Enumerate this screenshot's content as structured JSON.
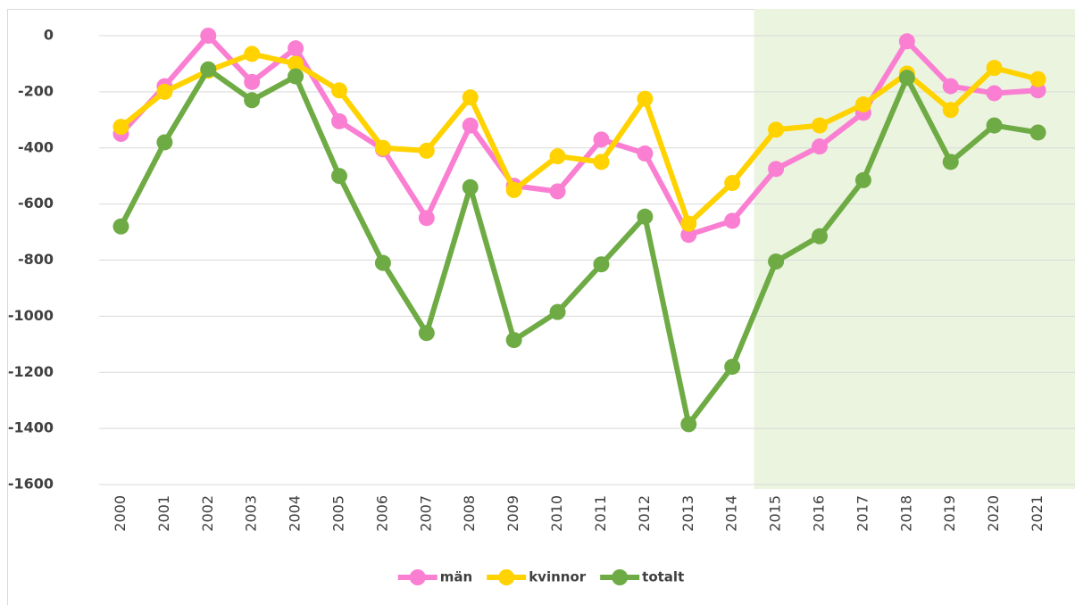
{
  "chart_data": {
    "type": "line",
    "categories": [
      "2000",
      "2001",
      "2002",
      "2003",
      "2004",
      "2005",
      "2006",
      "2007",
      "2008",
      "2009",
      "2010",
      "2011",
      "2012",
      "2013",
      "2014",
      "2015",
      "2016",
      "2017",
      "2018",
      "2019",
      "2020",
      "2021"
    ],
    "series": [
      {
        "name": "män",
        "color": "#fa7fd2",
        "values": [
          -350,
          -180,
          0,
          -165,
          -45,
          -305,
          -405,
          -650,
          -320,
          -535,
          -555,
          -370,
          -420,
          -710,
          -660,
          -475,
          -395,
          -275,
          -20,
          -180,
          -205,
          -195
        ]
      },
      {
        "name": "kvinnor",
        "color": "#ffd200",
        "values": [
          -325,
          -200,
          -125,
          -65,
          -100,
          -195,
          -400,
          -410,
          -220,
          -550,
          -430,
          -450,
          -225,
          -670,
          -525,
          -335,
          -320,
          -245,
          -135,
          -265,
          -115,
          -155
        ]
      },
      {
        "name": "totalt",
        "color": "#6fab44",
        "values": [
          -680,
          -380,
          -120,
          -230,
          -145,
          -500,
          -810,
          -1060,
          -540,
          -1085,
          -985,
          -815,
          -645,
          -1385,
          -1180,
          -805,
          -715,
          -515,
          -150,
          -450,
          -320,
          -345
        ]
      }
    ],
    "ylim": [
      -1600,
      0
    ],
    "yticks": [
      -1600,
      -1400,
      -1200,
      -1000,
      -800,
      -600,
      -400,
      -200,
      0
    ],
    "grid": true,
    "legend": "bottom",
    "highlight": {
      "from": "2015",
      "color": "#ebf4df"
    }
  }
}
